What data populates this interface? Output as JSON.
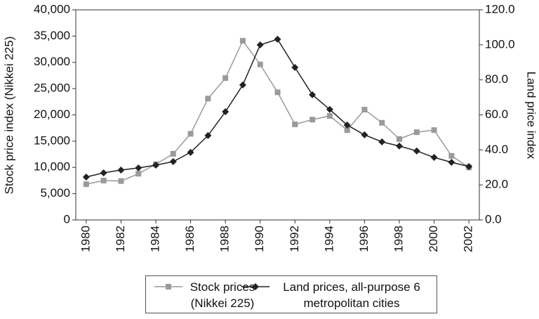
{
  "chart_data": {
    "type": "line",
    "x": [
      1980,
      1981,
      1982,
      1983,
      1984,
      1985,
      1986,
      1987,
      1988,
      1989,
      1990,
      1991,
      1992,
      1993,
      1994,
      1995,
      1996,
      1997,
      1998,
      1999,
      2000,
      2001,
      2002
    ],
    "xlim": [
      1979.4,
      2002.6
    ],
    "xticks": [
      1980,
      1982,
      1984,
      1986,
      1988,
      1990,
      1992,
      1994,
      1996,
      1998,
      2000,
      2002
    ],
    "ylabel": "Stock price index (Nikkei 225)",
    "y2label": "Land price index",
    "ylim": [
      0,
      40000
    ],
    "yticks": [
      0,
      {
        "value": 5000,
        "label": "5,000"
      },
      {
        "value": 10000,
        "label": "10,000"
      },
      {
        "value": 15000,
        "label": "15,000"
      },
      {
        "value": 20000,
        "label": "20,000"
      },
      {
        "value": 25000,
        "label": "25,000"
      },
      {
        "value": 30000,
        "label": "30,000"
      },
      {
        "value": 35000,
        "label": "35,000"
      },
      {
        "value": 40000,
        "label": "40,000"
      }
    ],
    "y2lim": [
      0,
      120
    ],
    "y2ticks": [
      {
        "value": 0,
        "label": "0.0"
      },
      {
        "value": 20,
        "label": "20.0"
      },
      {
        "value": 40,
        "label": "40.0"
      },
      {
        "value": 60,
        "label": "60.0"
      },
      {
        "value": 80,
        "label": "80.0"
      },
      {
        "value": 100,
        "label": "100.0"
      },
      {
        "value": 120,
        "label": "120.0"
      }
    ],
    "legend": "bottom",
    "series": [
      {
        "name": "Stock prices (Nikkei 225)",
        "color": "#9a9a9a",
        "marker": "square",
        "values": [
          6800,
          7500,
          7400,
          8800,
          10600,
          12600,
          16400,
          23100,
          27000,
          34100,
          29600,
          24300,
          18200,
          19100,
          19800,
          17100,
          21000,
          18500,
          15400,
          16700,
          17100,
          12200,
          10000
        ]
      },
      {
        "name": "Land prices, all-purpose 6 metropolitan cities",
        "color": "#222222",
        "marker": "diamond",
        "axis": "y2",
        "values": [
          24.5,
          26.9,
          28.5,
          29.7,
          31.3,
          33.3,
          38.6,
          48.2,
          61.8,
          77.1,
          100,
          103.2,
          87.1,
          71.5,
          63.1,
          54.2,
          48.6,
          44.6,
          42.2,
          39.4,
          35.7,
          32.9,
          30.5
        ]
      }
    ]
  }
}
